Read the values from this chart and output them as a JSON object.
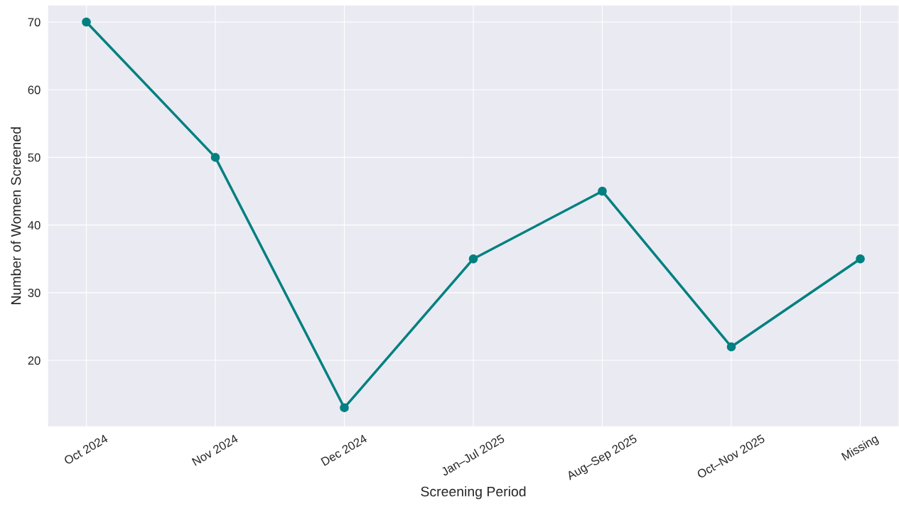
{
  "chart_data": {
    "type": "line",
    "xlabel": "Screening Period",
    "ylabel": "Number of Women Screened",
    "categories": [
      "Oct 2024",
      "Nov 2024",
      "Dec 2024",
      "Jan–Jul 2025",
      "Aug–Sep 2025",
      "Oct–Nov 2025",
      "Missing"
    ],
    "series": [
      {
        "color": "#008080",
        "values": [
          70,
          50,
          13,
          35,
          45,
          22,
          35
        ]
      }
    ],
    "ylim": [
      10.2,
      72.5
    ],
    "yticks": [
      20,
      30,
      40,
      50,
      60,
      70
    ],
    "grid": true,
    "marker": "circle",
    "line_style": "solid"
  }
}
